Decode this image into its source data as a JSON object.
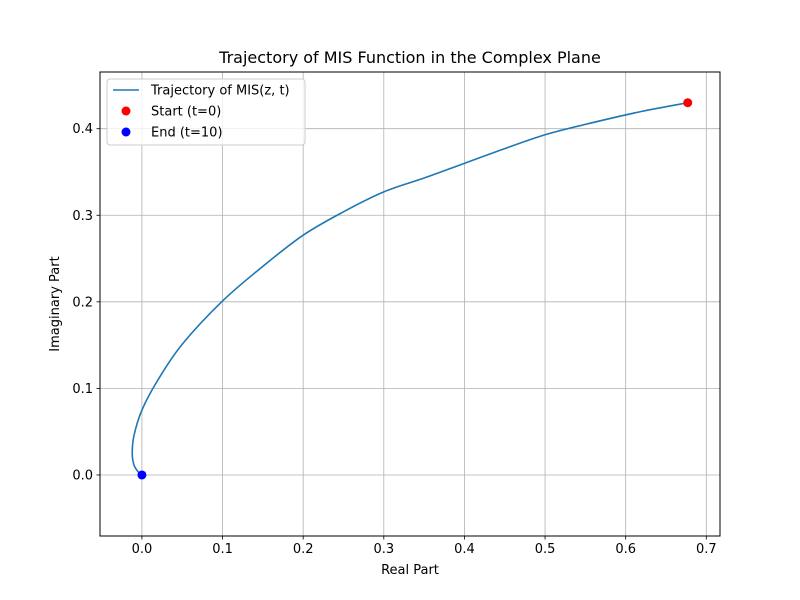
{
  "chart_data": {
    "type": "line",
    "title": "Trajectory of MIS Function in the Complex Plane",
    "xlabel": "Real Part",
    "ylabel": "Imaginary Part",
    "xlim": [
      -0.052,
      0.717
    ],
    "ylim": [
      -0.0705,
      0.4655
    ],
    "xticks": [
      0.0,
      0.1,
      0.2,
      0.3,
      0.4,
      0.5,
      0.6,
      0.7
    ],
    "xtick_labels": [
      "0.0",
      "0.1",
      "0.2",
      "0.3",
      "0.4",
      "0.5",
      "0.6",
      "0.7"
    ],
    "yticks": [
      0.0,
      0.1,
      0.2,
      0.3,
      0.4
    ],
    "ytick_labels": [
      "0.0",
      "0.1",
      "0.2",
      "0.3",
      "0.4"
    ],
    "grid": true,
    "legend_position": "top-left",
    "colors": {
      "line": "#1f77b4",
      "start": "#ff0000",
      "end": "#0000ff"
    },
    "series": [
      {
        "name": "Trajectory of MIS(z, t)",
        "kind": "line",
        "points": [
          [
            0.677,
            0.43
          ],
          [
            0.62,
            0.42
          ],
          [
            0.55,
            0.405
          ],
          [
            0.5,
            0.393
          ],
          [
            0.45,
            0.377
          ],
          [
            0.4,
            0.36
          ],
          [
            0.35,
            0.343
          ],
          [
            0.3,
            0.327
          ],
          [
            0.25,
            0.304
          ],
          [
            0.2,
            0.277
          ],
          [
            0.15,
            0.241
          ],
          [
            0.1,
            0.201
          ],
          [
            0.05,
            0.151
          ],
          [
            0.02,
            0.11
          ],
          [
            0.0,
            0.075
          ],
          [
            -0.01,
            0.045
          ],
          [
            -0.012,
            0.025
          ],
          [
            -0.01,
            0.012
          ],
          [
            -0.005,
            0.004
          ],
          [
            0.0,
            0.0
          ]
        ]
      },
      {
        "name": "Start (t=0)",
        "kind": "marker",
        "x": 0.677,
        "y": 0.43
      },
      {
        "name": "End (t=10)",
        "kind": "marker",
        "x": 0.0,
        "y": 0.0
      }
    ]
  }
}
